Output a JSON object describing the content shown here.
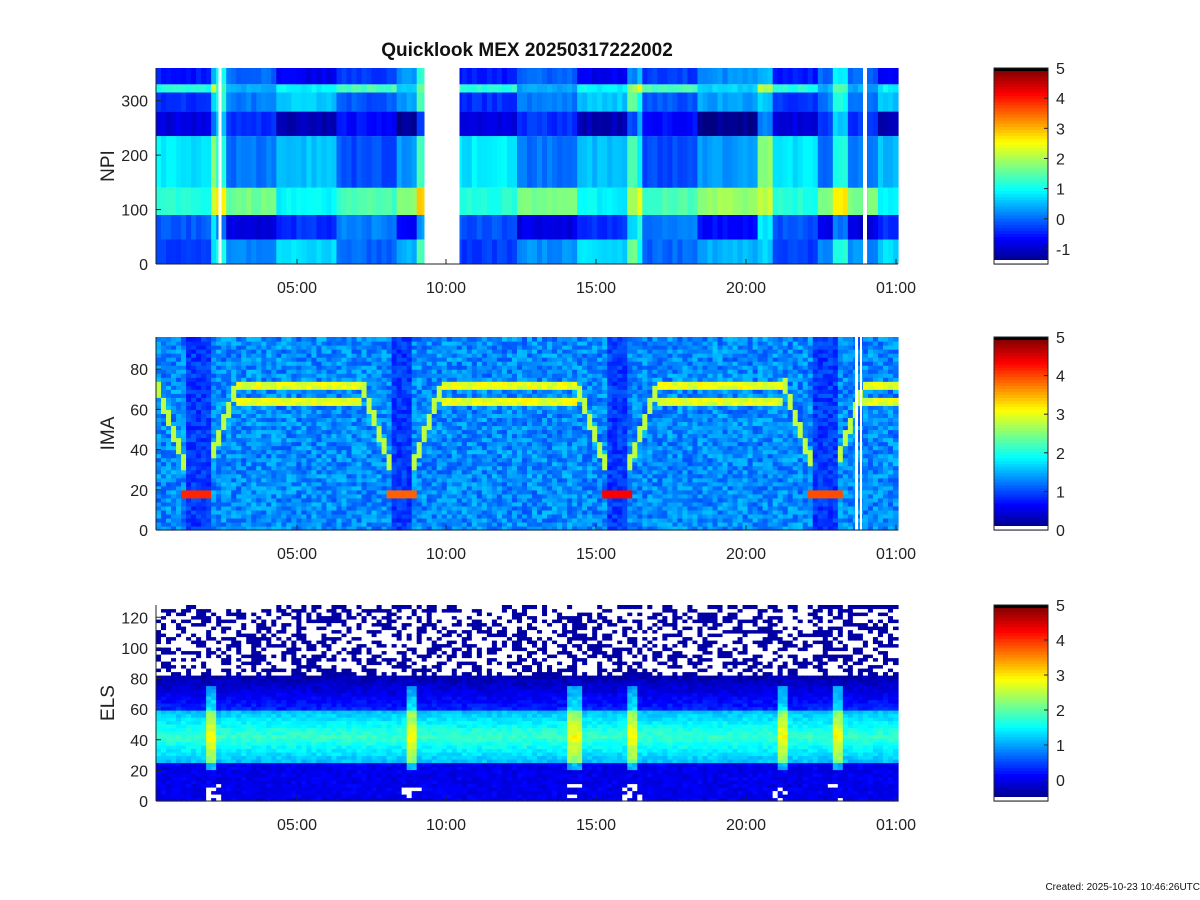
{
  "title": "Quicklook MEX 20250317222002",
  "created": "Created: 2025-10-23 10:46:26UTC",
  "x_tick_labels": [
    "05:00",
    "10:00",
    "15:00",
    "20:00",
    "01:00"
  ],
  "chart_data": [
    {
      "type": "heatmap",
      "instrument": "NPI",
      "ylabel": "NPI",
      "ylim": [
        0,
        360
      ],
      "yticks": [
        0,
        100,
        200,
        300
      ],
      "x_range": [
        "00:20",
        "01:00"
      ],
      "x_ticks": [
        "05:00",
        "10:00",
        "15:00",
        "20:00",
        "01:00"
      ],
      "data_gaps": [
        [
          "02:23",
          "02:28"
        ],
        [
          "09:15",
          "10:25"
        ],
        [
          "23:52",
          "00:00"
        ]
      ],
      "colorbar": {
        "min": -1.5,
        "max": 5,
        "ticks": [
          -1,
          0,
          1,
          2,
          3,
          4,
          5
        ]
      },
      "bands": [
        {
          "y_from": 0,
          "y_to": 45,
          "level": 0.2
        },
        {
          "y_from": 45,
          "y_to": 90,
          "level": -0.4
        },
        {
          "y_from": 90,
          "y_to": 140,
          "level": 1.4
        },
        {
          "y_from": 140,
          "y_to": 235,
          "level": 0.3
        },
        {
          "y_from": 235,
          "y_to": 280,
          "level": -0.9
        },
        {
          "y_from": 280,
          "y_to": 315,
          "level": 0.1
        },
        {
          "y_from": 315,
          "y_to": 330,
          "level": 0.9
        },
        {
          "y_from": 330,
          "y_to": 360,
          "level": -0.3
        }
      ]
    },
    {
      "type": "heatmap",
      "instrument": "IMA",
      "ylabel": "IMA",
      "ylim": [
        0,
        96
      ],
      "yticks": [
        0,
        20,
        40,
        60,
        80
      ],
      "x_range": [
        "00:20",
        "01:00"
      ],
      "x_ticks": [
        "05:00",
        "10:00",
        "15:00",
        "20:00",
        "01:00"
      ],
      "colorbar": {
        "min": 0,
        "max": 5,
        "ticks": [
          0,
          1,
          2,
          3,
          4,
          5
        ]
      },
      "background_level": 1.3,
      "line_levels": [
        72,
        64
      ],
      "dips": [
        {
          "center": "01:40",
          "bottom": 18,
          "peak_level": 4.2
        },
        {
          "center": "08:30",
          "bottom": 18,
          "peak_level": 3.9
        },
        {
          "center": "15:40",
          "bottom": 18,
          "peak_level": 4.4
        },
        {
          "center": "22:35",
          "bottom": 18,
          "peak_level": 4.0
        }
      ]
    },
    {
      "type": "heatmap",
      "instrument": "ELS",
      "ylabel": "ELS",
      "ylim": [
        0,
        128
      ],
      "yticks": [
        0,
        20,
        40,
        60,
        80,
        100,
        120
      ],
      "x_range": [
        "00:20",
        "01:00"
      ],
      "x_ticks": [
        "05:00",
        "10:00",
        "15:00",
        "20:00",
        "01:00"
      ],
      "colorbar": {
        "min": -0.6,
        "max": 5,
        "ticks": [
          0,
          1,
          2,
          3,
          4,
          5
        ]
      },
      "noise_above": 82,
      "core_band": [
        25,
        60
      ],
      "core_level": 1.8,
      "bright_times": [
        "02:10",
        "08:50",
        "14:15",
        "16:10",
        "21:10",
        "23:00"
      ]
    }
  ]
}
